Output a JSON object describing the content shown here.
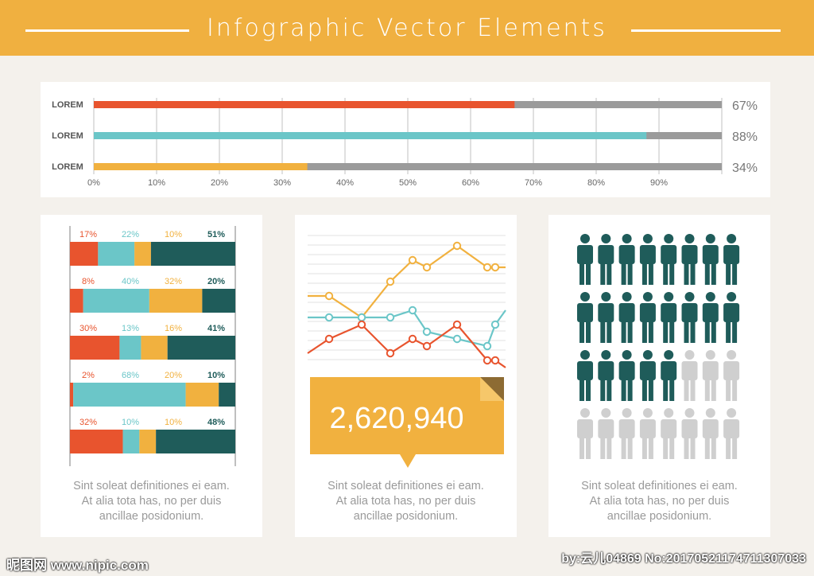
{
  "header": {
    "title": "Infographic Vector Elements"
  },
  "colors": {
    "orange_red": "#e8542e",
    "teal": "#6bc6c8",
    "yellow": "#f1b13f",
    "dark_teal": "#1f5c5a",
    "gray": "#9b9b9b",
    "light_gray": "#cfcfcf",
    "header_bg": "#f0b040"
  },
  "chart_data": [
    {
      "type": "bar",
      "orientation": "horizontal",
      "categories": [
        "LOREM",
        "LOREM",
        "LOREM"
      ],
      "values": [
        67,
        88,
        34
      ],
      "value_labels": [
        "67%",
        "88%",
        "34%"
      ],
      "bar_colors": [
        "#e8542e",
        "#6bc6c8",
        "#f1b13f"
      ],
      "xticks": [
        "0%",
        "10%",
        "20%",
        "30%",
        "40%",
        "50%",
        "60%",
        "70%",
        "80%",
        "90%"
      ],
      "xlim": [
        0,
        100
      ],
      "grid": true
    },
    {
      "type": "bar",
      "orientation": "horizontal-stacked-100",
      "rows": [
        {
          "values": [
            17,
            22,
            10,
            51
          ],
          "labels": [
            "17%",
            "22%",
            "10%",
            "51%"
          ]
        },
        {
          "values": [
            8,
            40,
            32,
            20
          ],
          "labels": [
            "8%",
            "40%",
            "32%",
            "20%"
          ]
        },
        {
          "values": [
            30,
            13,
            16,
            41
          ],
          "labels": [
            "30%",
            "13%",
            "16%",
            "41%"
          ]
        },
        {
          "values": [
            2,
            68,
            20,
            10
          ],
          "labels": [
            "2%",
            "68%",
            "20%",
            "10%"
          ]
        },
        {
          "values": [
            32,
            10,
            10,
            48
          ],
          "labels": [
            "32%",
            "10%",
            "10%",
            "48%"
          ]
        }
      ],
      "segment_colors": [
        "#e8542e",
        "#6bc6c8",
        "#f1b13f",
        "#1f5c5a"
      ]
    },
    {
      "type": "line",
      "x": [
        0,
        1,
        2,
        3,
        4,
        5,
        6,
        7,
        8,
        9
      ],
      "series": [
        {
          "color": "#f1b13f",
          "values": [
            60,
            60,
            45,
            70,
            85,
            80,
            95,
            80,
            80,
            80
          ]
        },
        {
          "color": "#6bc6c8",
          "values": [
            45,
            45,
            45,
            45,
            50,
            35,
            30,
            25,
            40,
            50
          ]
        },
        {
          "color": "#e8542e",
          "values": [
            20,
            30,
            40,
            20,
            30,
            25,
            40,
            15,
            15,
            10
          ]
        }
      ],
      "grid": true,
      "callout_value": "2,620,940"
    },
    {
      "type": "pictogram",
      "total": 32,
      "per_row": 8,
      "filled": 21,
      "filled_color": "#1f5c5a",
      "empty_color": "#cfcfcf"
    }
  ],
  "captions": {
    "line1": "Sint soleat definitiones ei eam.",
    "line2": "At alia tota has, no per duis",
    "line3": "ancillae posidonium."
  },
  "watermark": {
    "left": "昵图网 www.nipic.com",
    "right": "by:云儿04869 No:20170521174711307033"
  }
}
